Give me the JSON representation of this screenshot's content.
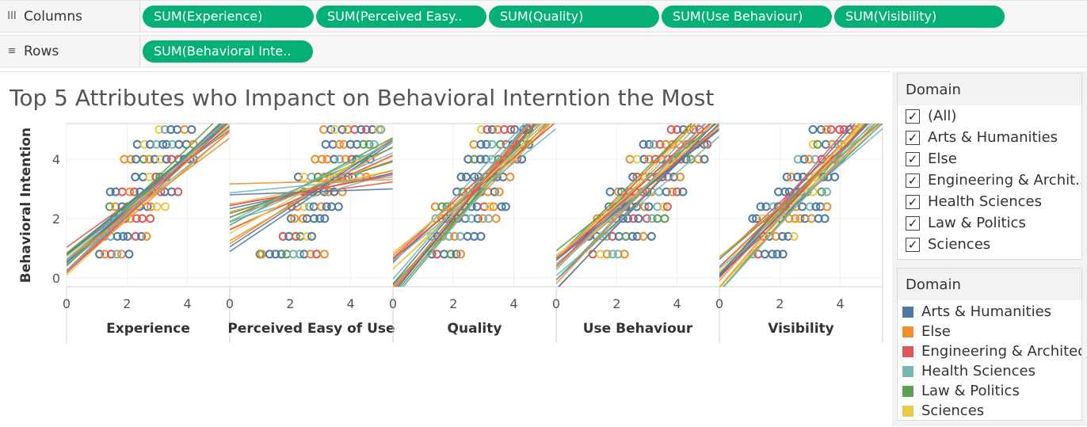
{
  "columns_shelf": {
    "label": "Columns",
    "icon": "columns-icon",
    "pills": [
      "SUM(Experience)",
      "SUM(Perceived Easy..",
      "SUM(Quality)",
      "SUM(Use Behaviour)",
      "SUM(Visibility)"
    ]
  },
  "rows_shelf": {
    "label": "Rows",
    "icon": "rows-icon",
    "pills": [
      "SUM(Behavioral Inte.."
    ]
  },
  "title": "Top 5 Attributes who Impanct on Behavioral Interntion the Most",
  "filter": {
    "title": "Domain",
    "items": [
      {
        "label": "(All)",
        "checked": true
      },
      {
        "label": "Arts & Humanities",
        "checked": true
      },
      {
        "label": "Else",
        "checked": true
      },
      {
        "label": "Engineering & Archit...",
        "checked": true
      },
      {
        "label": "Health Sciences",
        "checked": true
      },
      {
        "label": "Law & Politics",
        "checked": true
      },
      {
        "label": "Sciences",
        "checked": true
      }
    ]
  },
  "legend": {
    "title": "Domain",
    "items": [
      {
        "label": "Arts & Humanities",
        "color": "#4e79a7"
      },
      {
        "label": "Else",
        "color": "#f28e2b"
      },
      {
        "label": "Engineering & Architec..",
        "color": "#e15759"
      },
      {
        "label": "Health Sciences",
        "color": "#76b7b2"
      },
      {
        "label": "Law & Politics",
        "color": "#59a14f"
      },
      {
        "label": "Sciences",
        "color": "#edc948"
      }
    ]
  },
  "chart_data": {
    "type": "scatter",
    "ylabel": "Behavioral Intention",
    "y_ticks": [
      "0",
      "2",
      "4"
    ],
    "x_ticks": [
      "0",
      "2",
      "4"
    ],
    "xlim": [
      0,
      5.4
    ],
    "ylim": [
      -0.3,
      5.2
    ],
    "grid": true,
    "legend_placement": "right",
    "panels": [
      {
        "xlabel": "Experience",
        "slope_range": [
          0.7,
          1.0
        ],
        "x_spread": [
          0.8,
          4.2
        ]
      },
      {
        "xlabel": "Perceived Easy of Use",
        "slope_range": [
          0.0,
          0.7
        ],
        "x_spread": [
          1.0,
          5.0
        ]
      },
      {
        "xlabel": "Quality",
        "slope_range": [
          0.8,
          1.3
        ],
        "x_spread": [
          1.0,
          4.5
        ]
      },
      {
        "xlabel": "Use Behaviour",
        "slope_range": [
          0.8,
          1.1
        ],
        "x_spread": [
          0.8,
          5.0
        ]
      },
      {
        "xlabel": "Visibility",
        "slope_range": [
          0.8,
          1.2
        ],
        "x_spread": [
          0.8,
          4.5
        ]
      }
    ],
    "y_levels": [
      0.8,
      1.4,
      2.0,
      2.4,
      2.9,
      3.4,
      4.0,
      4.5,
      5.0
    ]
  }
}
